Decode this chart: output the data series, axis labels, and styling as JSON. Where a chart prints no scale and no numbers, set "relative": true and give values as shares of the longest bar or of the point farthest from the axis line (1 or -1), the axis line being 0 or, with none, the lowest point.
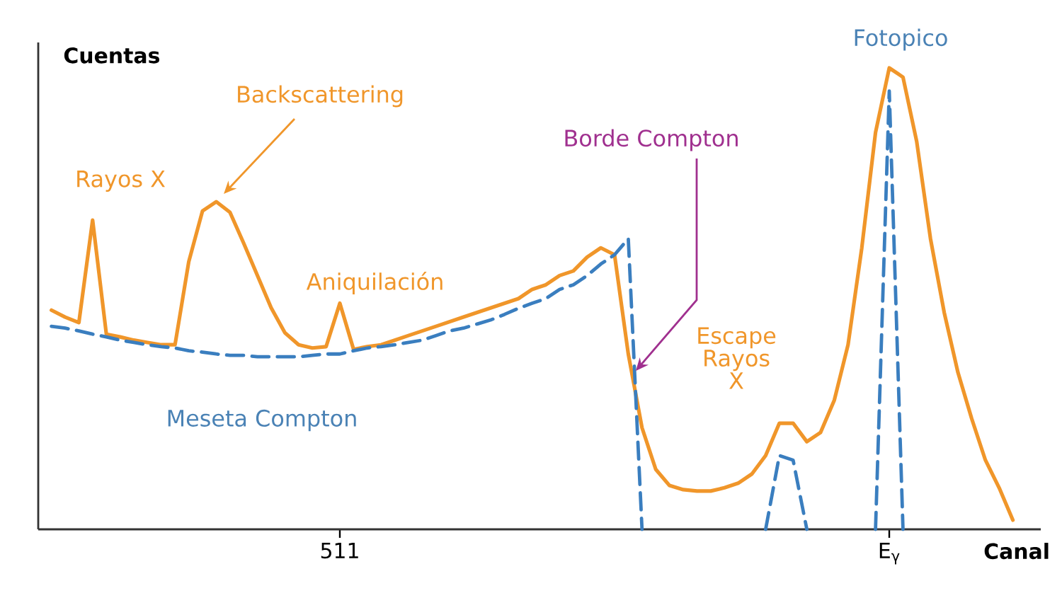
{
  "chart_data": {
    "type": "line",
    "relative": true,
    "xlabel": "Canal",
    "ylabel": "Cuentas",
    "categories": [
      null,
      null,
      null,
      null,
      null,
      null,
      null,
      null,
      null,
      null,
      null,
      null,
      null,
      null,
      null,
      null,
      null,
      null,
      null,
      null,
      null,
      "511",
      null,
      null,
      null,
      null,
      null,
      null,
      null,
      null,
      null,
      null,
      null,
      null,
      null,
      null,
      null,
      null,
      null,
      null,
      null,
      null,
      null,
      null,
      null,
      null,
      null,
      null,
      null,
      null,
      null,
      null,
      null,
      null,
      null,
      null,
      null,
      null,
      null,
      null,
      null,
      "E$_{γ}$",
      null,
      null,
      null,
      null,
      null,
      null,
      null,
      null,
      null
    ],
    "series": [
      {
        "color": "#f0962a",
        "values": [
          0.475,
          0.46,
          0.448,
          0.67,
          0.423,
          0.417,
          0.41,
          0.405,
          0.4,
          0.4,
          0.58,
          0.69,
          0.71,
          0.687,
          0.62,
          0.55,
          0.48,
          0.426,
          0.4,
          0.393,
          0.396,
          0.49,
          0.39,
          0.396,
          0.4,
          0.41,
          0.42,
          0.43,
          0.44,
          0.45,
          0.46,
          0.47,
          0.48,
          0.49,
          0.5,
          0.52,
          0.53,
          0.55,
          0.56,
          0.59,
          0.61,
          0.595,
          0.38,
          0.22,
          0.13,
          0.095,
          0.086,
          0.083,
          0.083,
          0.09,
          0.1,
          0.12,
          0.16,
          0.23,
          0.23,
          0.19,
          0.21,
          0.28,
          0.4,
          0.61,
          0.86,
          1,
          0.98,
          0.84,
          0.63,
          0.47,
          0.34,
          0.24,
          0.15,
          0.09,
          0.02
        ]
      },
      {
        "color": "#3a7ebf",
        "line_style": "dashed",
        "values": [
          0.44,
          0.436,
          0.43,
          0.423,
          0.417,
          0.41,
          0.405,
          0.4,
          0.396,
          0.393,
          0.387,
          0.384,
          0.38,
          0.377,
          0.377,
          0.374,
          0.374,
          0.374,
          0.374,
          0.377,
          0.38,
          0.38,
          0.387,
          0.393,
          0.396,
          0.4,
          0.405,
          0.41,
          0.42,
          0.43,
          0.436,
          0.445,
          0.454,
          0.466,
          0.479,
          0.49,
          0.5,
          0.52,
          0.53,
          0.55,
          0.575,
          0.595,
          0.63,
          0,
          null,
          null,
          null,
          null,
          null,
          null,
          null,
          null,
          0,
          0.16,
          0.15,
          0,
          null,
          null,
          null,
          null,
          0,
          0.95,
          0,
          null,
          null,
          null,
          null,
          null,
          null,
          null,
          null
        ]
      }
    ],
    "annotations": [
      "Rayos X",
      "Backscattering",
      "Aniquilación",
      "Borde Compton",
      "Escape Rayos X",
      "Meseta Compton",
      "Fotopico"
    ]
  }
}
